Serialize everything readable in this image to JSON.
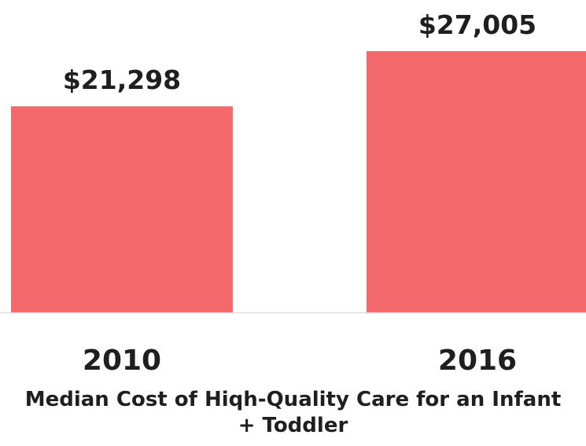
{
  "chart_data": {
    "type": "bar",
    "title": "Median Cost of Hiqh-Quality Care for an Infant + Toddler",
    "categories": [
      "2010",
      "2016"
    ],
    "values": [
      21298,
      27005
    ],
    "value_labels": [
      "$21,298",
      "$27,005"
    ],
    "color": "#f4696b"
  }
}
